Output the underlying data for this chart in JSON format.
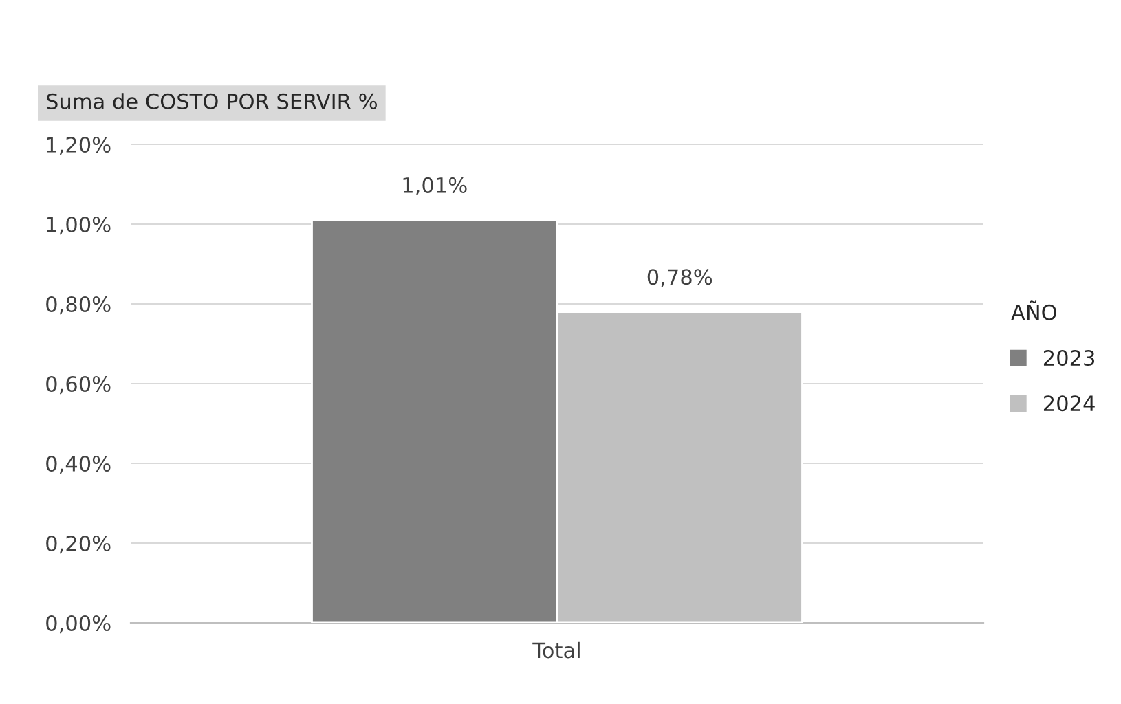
{
  "chart_data": {
    "type": "bar",
    "title": "Suma de COSTO POR SERVIR %",
    "legend_title": "AÑO",
    "categories": [
      "Total"
    ],
    "series": [
      {
        "name": "2023",
        "color": "#808080",
        "values": [
          1.01
        ],
        "value_labels": [
          "1,01%"
        ]
      },
      {
        "name": "2024",
        "color": "#c0c0c0",
        "values": [
          0.78
        ],
        "value_labels": [
          "0,78%"
        ]
      }
    ],
    "ylim": [
      0,
      1.2
    ],
    "yticks": [
      {
        "value": 0,
        "label": "0,00%"
      },
      {
        "value": 0.2,
        "label": "0,20%"
      },
      {
        "value": 0.4,
        "label": "0,40%"
      },
      {
        "value": 0.6,
        "label": "0,60%"
      },
      {
        "value": 0.8,
        "label": "0,80%"
      },
      {
        "value": 1.0,
        "label": "1,00%"
      },
      {
        "value": 1.2,
        "label": "1,20%"
      }
    ],
    "grid": "y",
    "legend": "right"
  }
}
